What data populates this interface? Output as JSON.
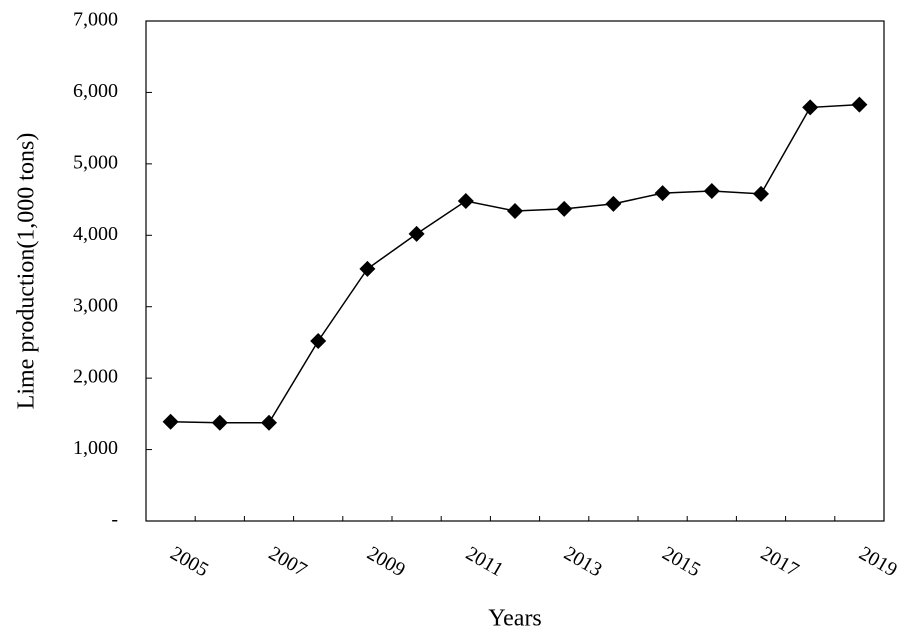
{
  "chart_data": {
    "type": "line",
    "x_label": "Years",
    "y_label": "Lime production(1,000 tons)",
    "categories": [
      "2005",
      null,
      "2007",
      null,
      "2009",
      null,
      "2011",
      null,
      "2013",
      null,
      "2015",
      null,
      "2017",
      null,
      "2019"
    ],
    "series": [
      {
        "name": "Lime production",
        "color": "#000000",
        "values": [
          1390,
          1375,
          1375,
          2520,
          3530,
          4020,
          4480,
          4340,
          4370,
          4440,
          4590,
          4620,
          4580,
          5790,
          5830
        ]
      }
    ],
    "ylim": [
      0,
      7000
    ],
    "yticks": [
      {
        "value": 0,
        "label": "-"
      },
      {
        "value": 1000,
        "label": "1,000"
      },
      {
        "value": 2000,
        "label": "2,000"
      },
      {
        "value": 3000,
        "label": "3,000"
      },
      {
        "value": 4000,
        "label": "4,000"
      },
      {
        "value": 5000,
        "label": "5,000"
      },
      {
        "value": 6000,
        "label": "6,000"
      },
      {
        "value": 7000,
        "label": "7,000"
      }
    ],
    "grid": false
  }
}
